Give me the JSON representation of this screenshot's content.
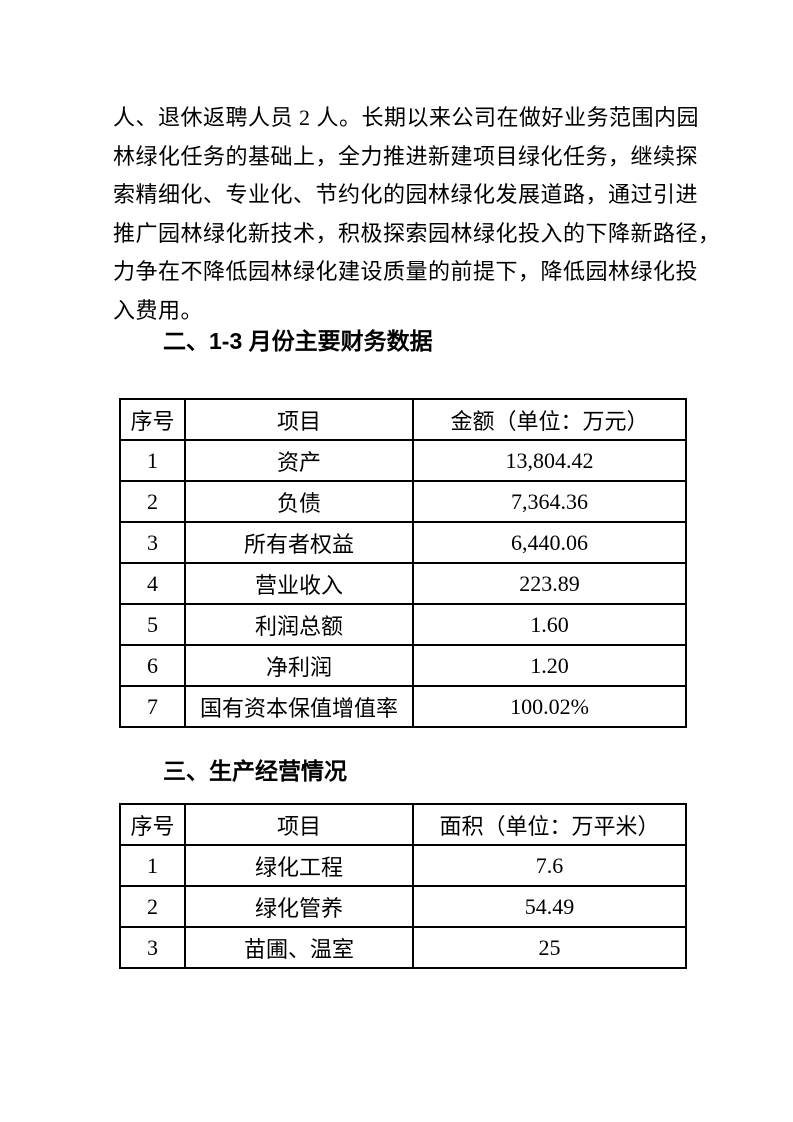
{
  "page": {
    "paper_color": "#ffffff",
    "ink_color": "#000000"
  },
  "intro_paragraph": {
    "lines": [
      "人、退休返聘人员 2 人。长期以来公司在做好业务范围内园",
      "林绿化任务的基础上，全力推进新建项目绿化任务，继续探",
      "索精细化、专业化、节约化的园林绿化发展道路，通过引进",
      "推广园林绿化新技术，积极探索园林绿化投入的下降新路径，",
      "力争在不降低园林绿化建设质量的前提下，降低园林绿化投",
      "入费用。"
    ]
  },
  "section2": {
    "heading": "二、1-3 月份主要财务数据",
    "table": {
      "headers": [
        "序号",
        "项目",
        "金额（单位：万元）"
      ],
      "rows": [
        [
          "1",
          "资产",
          "13,804.42"
        ],
        [
          "2",
          "负债",
          "7,364.36"
        ],
        [
          "3",
          "所有者权益",
          "6,440.06"
        ],
        [
          "4",
          "营业收入",
          "223.89"
        ],
        [
          "5",
          "利润总额",
          "1.60"
        ],
        [
          "6",
          "净利润",
          "1.20"
        ],
        [
          "7",
          "国有资本保值增值率",
          "100.02%"
        ]
      ]
    }
  },
  "section3": {
    "heading": "三、生产经营情况",
    "table": {
      "headers": [
        "序号",
        "项目",
        "面积（单位：万平米）"
      ],
      "rows": [
        [
          "1",
          "绿化工程",
          "7.6"
        ],
        [
          "2",
          "绿化管养",
          "54.49"
        ],
        [
          "3",
          "苗圃、温室",
          "25"
        ]
      ]
    }
  }
}
